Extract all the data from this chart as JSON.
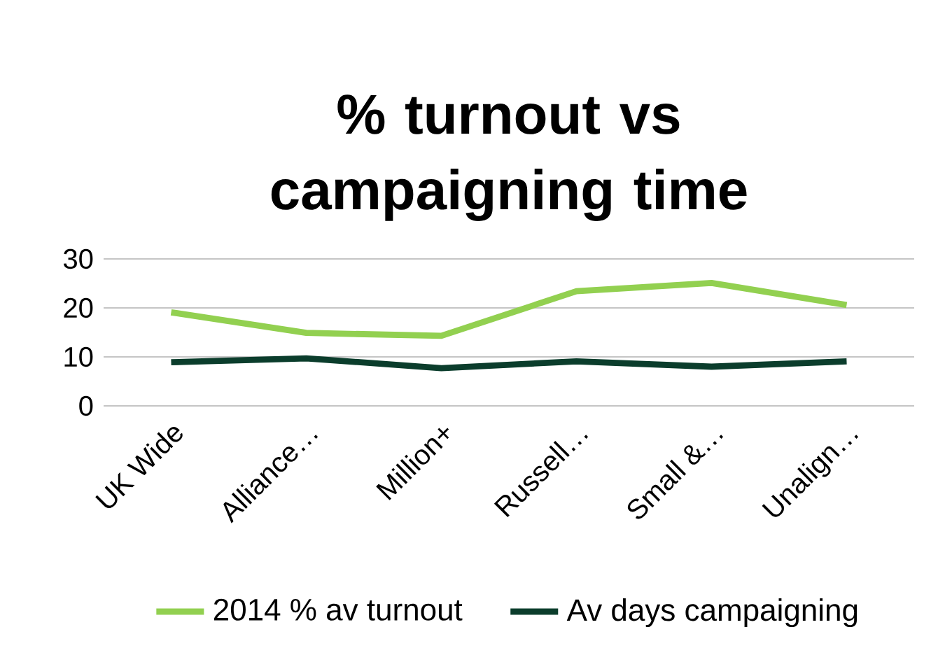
{
  "chart_data": {
    "type": "line",
    "title": "% turnout vs campaigning time",
    "categories": [
      "UK Wide",
      "Alliance…",
      "Million+",
      "Russell…",
      "Small &…",
      "Unalign…"
    ],
    "series": [
      {
        "name": "2014 % av turnout",
        "color": "#92d050",
        "values": [
          19.1,
          14.9,
          14.3,
          23.4,
          25.1,
          20.6
        ]
      },
      {
        "name": "Av days campaigning",
        "color": "#0b3d2c",
        "values": [
          8.9,
          9.7,
          7.7,
          9.1,
          8.0,
          9.1
        ]
      }
    ],
    "ylim": [
      0,
      30
    ],
    "yticks": [
      0,
      10,
      20,
      30
    ],
    "grid": "y",
    "legend": "bottom",
    "marker": "none",
    "line_style": "solid"
  }
}
